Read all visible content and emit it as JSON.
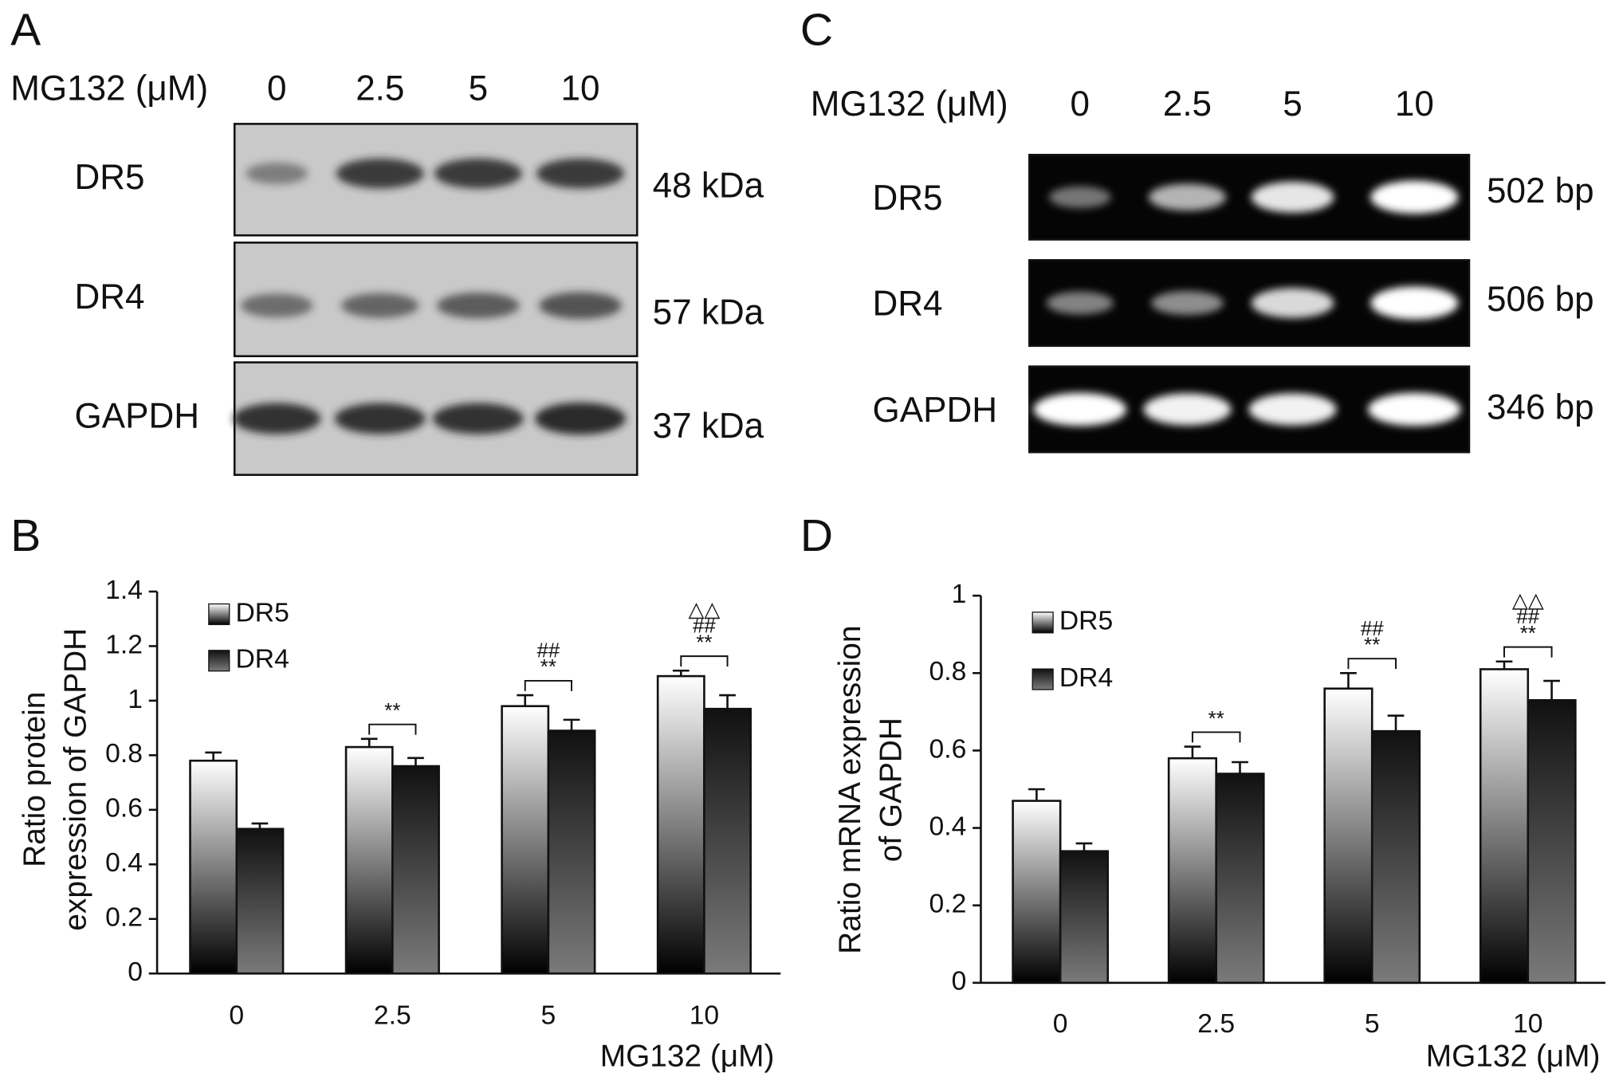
{
  "blot_a": {
    "panel_label": "A",
    "treatment_label": "MG132 (μM)",
    "lanes": [
      "0",
      "2.5",
      "5",
      "10"
    ],
    "rows": [
      {
        "name": "DR5",
        "size": "48 kDa"
      },
      {
        "name": "DR4",
        "size": "57 kDa"
      },
      {
        "name": "GAPDH",
        "size": "37 kDa"
      }
    ]
  },
  "blot_c": {
    "panel_label": "C",
    "treatment_label": "MG132 (μM)",
    "lanes": [
      "0",
      "2.5",
      "5",
      "10"
    ],
    "rows": [
      {
        "name": "DR5",
        "size": "502 bp"
      },
      {
        "name": "DR4",
        "size": "506 bp"
      },
      {
        "name": "GAPDH",
        "size": "346 bp"
      }
    ]
  },
  "chart_data": [
    {
      "type": "bar",
      "panel_label": "B",
      "ylabel": [
        "Ratio protein",
        "expression of GAPDH"
      ],
      "xlabel": "MG132 (μM)",
      "categories": [
        "0",
        "2.5",
        "5",
        "10"
      ],
      "series": [
        {
          "name": "DR5",
          "gradient": [
            "#ffffff",
            "#000000"
          ],
          "values": [
            0.78,
            0.83,
            0.98,
            1.09
          ],
          "errors": [
            0.03,
            0.03,
            0.04,
            0.02
          ]
        },
        {
          "name": "DR4",
          "gradient": [
            "#111111",
            "#7a7a7a"
          ],
          "values": [
            0.53,
            0.76,
            0.89,
            0.97
          ],
          "errors": [
            0.02,
            0.03,
            0.04,
            0.05
          ]
        }
      ],
      "significance": [
        [],
        [
          "**"
        ],
        [
          "**",
          "##"
        ],
        [
          "**",
          "##",
          "△△"
        ]
      ],
      "ylim": [
        0,
        1.4
      ],
      "yticks": [
        0,
        0.2,
        0.4,
        0.6,
        0.8,
        1,
        1.2,
        1.4
      ],
      "grid": false
    },
    {
      "type": "bar",
      "panel_label": "D",
      "ylabel": [
        "Ratio mRNA expression",
        "of GAPDH"
      ],
      "xlabel": "MG132 (μM)",
      "categories": [
        "0",
        "2.5",
        "5",
        "10"
      ],
      "series": [
        {
          "name": "DR5",
          "gradient": [
            "#ffffff",
            "#000000"
          ],
          "values": [
            0.47,
            0.58,
            0.76,
            0.81
          ],
          "errors": [
            0.03,
            0.03,
            0.04,
            0.02
          ]
        },
        {
          "name": "DR4",
          "gradient": [
            "#111111",
            "#7a7a7a"
          ],
          "values": [
            0.34,
            0.54,
            0.65,
            0.73
          ],
          "errors": [
            0.02,
            0.03,
            0.04,
            0.05
          ]
        }
      ],
      "significance": [
        [],
        [
          "**"
        ],
        [
          "**",
          "##"
        ],
        [
          "**",
          "##",
          "△△"
        ]
      ],
      "ylim": [
        0,
        1
      ],
      "yticks": [
        0,
        0.2,
        0.4,
        0.6,
        0.8,
        1
      ],
      "grid": false
    }
  ]
}
